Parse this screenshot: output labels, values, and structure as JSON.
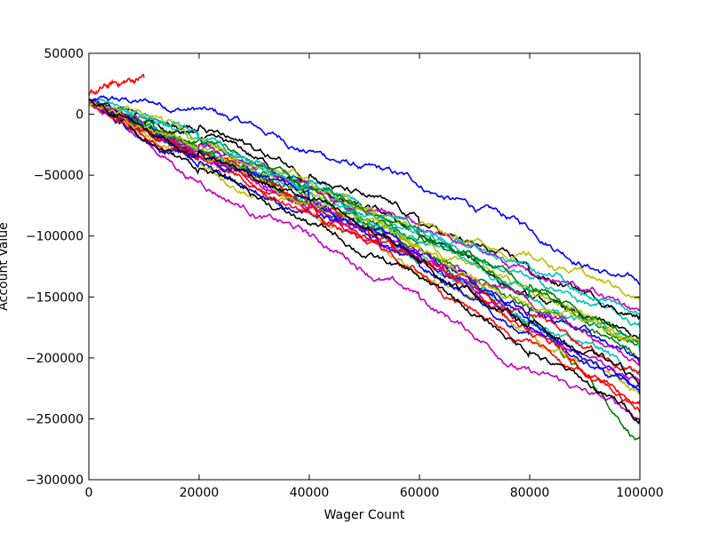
{
  "chart_data": {
    "type": "line",
    "title": "",
    "xlabel": "Wager Count",
    "ylabel": "Account Value",
    "xlim": [
      0,
      100000
    ],
    "ylim": [
      -300000,
      50000
    ],
    "x_ticks": [
      0,
      20000,
      40000,
      60000,
      80000,
      100000
    ],
    "x_tick_labels": [
      "0",
      "20000",
      "40000",
      "60000",
      "80000",
      "100000"
    ],
    "y_ticks": [
      50000,
      0,
      -50000,
      -100000,
      -150000,
      -200000,
      -250000,
      -300000
    ],
    "y_tick_labels": [
      "50000",
      "0",
      "−50000",
      "−100000",
      "−150000",
      "−200000",
      "−250000",
      "−300000"
    ],
    "grid": false,
    "legend": "none",
    "series_colors": [
      "#0000ff",
      "#008000",
      "#ff0000",
      "#00bfbf",
      "#bf00bf",
      "#bfbf00",
      "#000000"
    ],
    "series": [
      {
        "x": [
          0,
          20000,
          40000,
          60000,
          80000,
          100000
        ],
        "values": [
          10000,
          5000,
          -30000,
          -60000,
          -95000,
          -140000
        ]
      },
      {
        "x": [
          0,
          20000,
          40000,
          60000,
          80000,
          100000
        ],
        "values": [
          10000,
          -30000,
          -70000,
          -110000,
          -165000,
          -265000
        ]
      },
      {
        "x": [
          0,
          10000
        ],
        "values": [
          15000,
          30000
        ]
      },
      {
        "x": [
          0,
          20000,
          40000,
          60000,
          80000,
          100000
        ],
        "values": [
          10000,
          -30000,
          -70000,
          -115000,
          -170000,
          -215000
        ]
      },
      {
        "x": [
          0,
          20000,
          40000,
          60000,
          80000,
          100000
        ],
        "values": [
          10000,
          -55000,
          -100000,
          -150000,
          -210000,
          -250000
        ]
      },
      {
        "x": [
          0,
          20000,
          40000,
          60000,
          80000,
          100000
        ],
        "values": [
          10000,
          -40000,
          -80000,
          -130000,
          -180000,
          -230000
        ]
      },
      {
        "x": [
          0,
          20000,
          40000,
          60000,
          80000,
          100000
        ],
        "values": [
          10000,
          -20000,
          -60000,
          -100000,
          -150000,
          -190000
        ]
      },
      {
        "x": [
          0,
          20000,
          40000,
          60000,
          80000,
          100000
        ],
        "values": [
          10000,
          -25000,
          -75000,
          -115000,
          -170000,
          -225000
        ]
      },
      {
        "x": [
          0,
          20000,
          40000,
          60000,
          80000,
          100000
        ],
        "values": [
          10000,
          -30000,
          -70000,
          -110000,
          -160000,
          -200000
        ]
      },
      {
        "x": [
          0,
          20000,
          40000,
          60000,
          80000,
          100000
        ],
        "values": [
          10000,
          -35000,
          -70000,
          -120000,
          -165000,
          -210000
        ]
      },
      {
        "x": [
          0,
          20000,
          40000,
          60000,
          80000,
          100000
        ],
        "values": [
          10000,
          -20000,
          -55000,
          -95000,
          -135000,
          -175000
        ]
      },
      {
        "x": [
          0,
          20000,
          40000,
          60000,
          80000,
          100000
        ],
        "values": [
          10000,
          -35000,
          -75000,
          -120000,
          -175000,
          -220000
        ]
      },
      {
        "x": [
          0,
          20000,
          40000,
          60000,
          80000,
          100000
        ],
        "values": [
          10000,
          -25000,
          -65000,
          -105000,
          -145000,
          -185000
        ]
      },
      {
        "x": [
          0,
          20000,
          40000,
          60000,
          80000,
          100000
        ],
        "values": [
          10000,
          -10000,
          -50000,
          -90000,
          -130000,
          -165000
        ]
      },
      {
        "x": [
          0,
          20000,
          40000,
          60000,
          80000,
          100000
        ],
        "values": [
          10000,
          -40000,
          -80000,
          -125000,
          -175000,
          -230000
        ]
      },
      {
        "x": [
          0,
          20000,
          40000,
          60000,
          80000,
          100000
        ],
        "values": [
          10000,
          -30000,
          -60000,
          -100000,
          -140000,
          -185000
        ]
      },
      {
        "x": [
          0,
          20000,
          40000,
          60000,
          80000,
          100000
        ],
        "values": [
          10000,
          -35000,
          -80000,
          -130000,
          -185000,
          -245000
        ]
      },
      {
        "x": [
          0,
          20000,
          40000,
          60000,
          80000,
          100000
        ],
        "values": [
          10000,
          -30000,
          -65000,
          -105000,
          -150000,
          -195000
        ]
      },
      {
        "x": [
          0,
          20000,
          40000,
          60000,
          80000,
          100000
        ],
        "values": [
          10000,
          -25000,
          -60000,
          -95000,
          -130000,
          -160000
        ]
      },
      {
        "x": [
          0,
          20000,
          40000,
          60000,
          80000,
          100000
        ],
        "values": [
          10000,
          -20000,
          -55000,
          -90000,
          -115000,
          -150000
        ]
      },
      {
        "x": [
          0,
          20000,
          40000,
          60000,
          80000,
          100000
        ],
        "values": [
          10000,
          -45000,
          -90000,
          -135000,
          -195000,
          -250000
        ]
      },
      {
        "x": [
          0,
          20000,
          40000,
          60000,
          80000,
          100000
        ],
        "values": [
          10000,
          -30000,
          -70000,
          -115000,
          -160000,
          -205000
        ]
      },
      {
        "x": [
          0,
          20000,
          40000,
          60000,
          80000,
          100000
        ],
        "values": [
          10000,
          -20000,
          -60000,
          -100000,
          -145000,
          -180000
        ]
      },
      {
        "x": [
          0,
          20000,
          40000,
          60000,
          80000,
          100000
        ],
        "values": [
          10000,
          -30000,
          -75000,
          -120000,
          -180000,
          -235000
        ]
      },
      {
        "x": [
          0,
          20000,
          40000,
          60000,
          80000,
          100000
        ],
        "values": [
          10000,
          -20000,
          -55000,
          -95000,
          -125000,
          -165000
        ]
      },
      {
        "x": [
          0,
          20000,
          40000,
          60000,
          80000,
          100000
        ],
        "values": [
          10000,
          -35000,
          -75000,
          -110000,
          -155000,
          -200000
        ]
      },
      {
        "x": [
          0,
          20000,
          40000,
          60000,
          80000,
          100000
        ],
        "values": [
          10000,
          -30000,
          -70000,
          -110000,
          -155000,
          -190000
        ]
      },
      {
        "x": [
          0,
          20000,
          40000,
          60000,
          80000,
          100000
        ],
        "values": [
          10000,
          -30000,
          -70000,
          -120000,
          -170000,
          -220000
        ]
      }
    ]
  }
}
